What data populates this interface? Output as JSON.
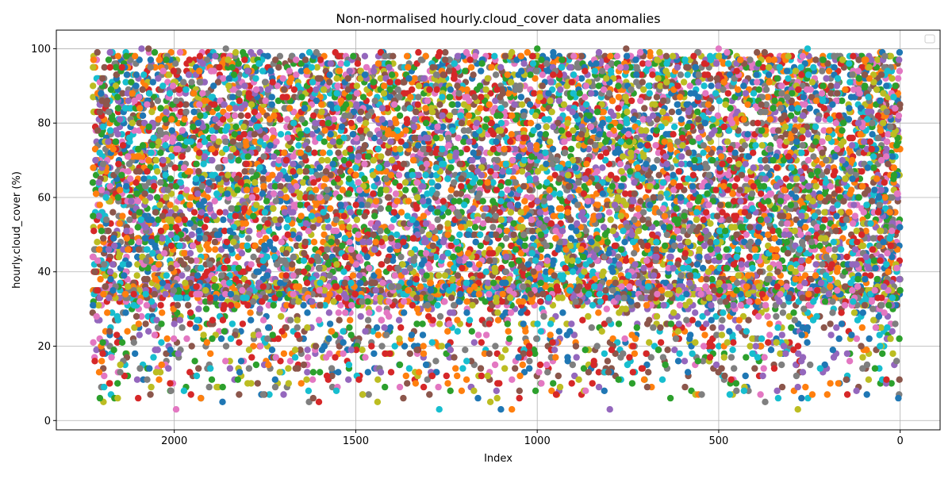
{
  "chart_data": {
    "type": "scatter",
    "title": "Non-normalised hourly.cloud_cover data anomalies",
    "xlabel": "Index",
    "ylabel": "hourly.cloud_cover (%)",
    "x_inverted": true,
    "xlim": [
      2325,
      -110
    ],
    "ylim": [
      -2.5,
      105
    ],
    "x_ticks": [
      2000,
      1500,
      1000,
      500,
      0
    ],
    "x_tick_labels": [
      "2000",
      "1500",
      "1000",
      "500",
      "0"
    ],
    "y_ticks": [
      0,
      20,
      40,
      60,
      80,
      100
    ],
    "y_tick_labels": [
      "0",
      "20",
      "40",
      "60",
      "80",
      "100"
    ],
    "grid": true,
    "legend": {
      "placement": "top-right",
      "entries": []
    },
    "marker": "circle",
    "series_colors": [
      "#1f77b4",
      "#ff7f0e",
      "#2ca02c",
      "#d62728",
      "#9467bd",
      "#8c564b",
      "#e377c2",
      "#7f7f7f",
      "#bcbd22",
      "#17becf"
    ],
    "x_range": [
      0,
      2225
    ],
    "y_dense_band": [
      31,
      100
    ],
    "y_sparse_band": [
      3,
      31
    ],
    "points_sample": [
      {
        "x": 2224,
        "y": 31
      },
      {
        "x": 2207,
        "y": 13
      },
      {
        "x": 2197,
        "y": 21
      },
      {
        "x": 2178,
        "y": 10
      },
      {
        "x": 2090,
        "y": 100
      },
      {
        "x": 2071,
        "y": 100
      },
      {
        "x": 1995,
        "y": 3
      },
      {
        "x": 1858,
        "y": 100
      },
      {
        "x": 1440,
        "y": 5
      },
      {
        "x": 1270,
        "y": 3
      },
      {
        "x": 1100,
        "y": 3
      },
      {
        "x": 1070,
        "y": 3
      },
      {
        "x": 1000,
        "y": 100
      },
      {
        "x": 948,
        "y": 7
      },
      {
        "x": 800,
        "y": 3
      },
      {
        "x": 755,
        "y": 100
      },
      {
        "x": 500,
        "y": 100
      },
      {
        "x": 372,
        "y": 5
      },
      {
        "x": 282,
        "y": 3
      },
      {
        "x": 255,
        "y": 100
      },
      {
        "x": 5,
        "y": 6
      }
    ]
  }
}
